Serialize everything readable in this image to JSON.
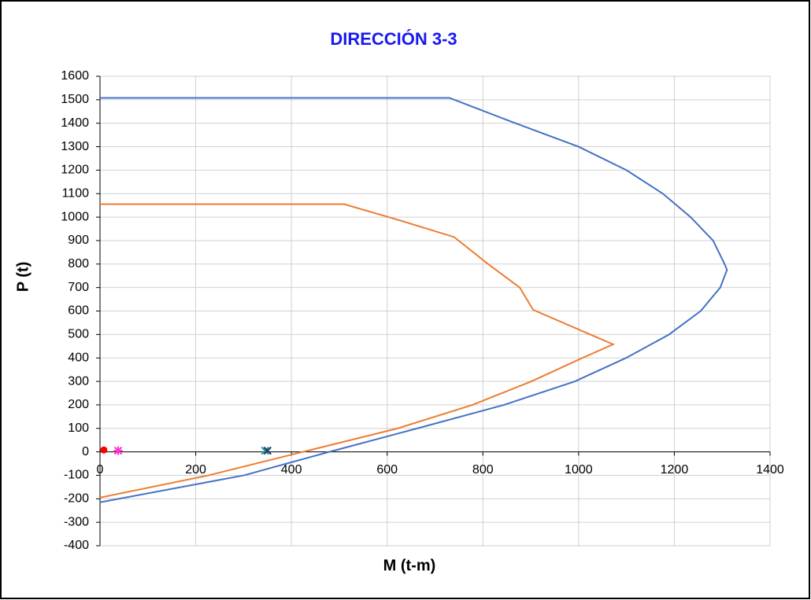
{
  "chart_data": {
    "type": "scatter",
    "title": "DIRECCIÓN 3-3",
    "x_label": "M (t-m)",
    "y_label": "P (t)",
    "xlim": [
      0,
      1400
    ],
    "ylim": [
      -400,
      1600
    ],
    "xticks": [
      0,
      200,
      400,
      600,
      800,
      1000,
      1200,
      1400
    ],
    "yticks": [
      -400,
      -300,
      -200,
      -100,
      0,
      100,
      200,
      300,
      400,
      500,
      600,
      700,
      800,
      900,
      1000,
      1100,
      1200,
      1300,
      1400,
      1500,
      1600
    ],
    "grid": true,
    "series": [
      {
        "color": "#4472c4",
        "marker": "none",
        "x": [
          0,
          730,
          868,
          1000,
          1100,
          1176,
          1234,
          1281,
          1305,
          1310,
          1296,
          1255,
          1189,
          1099,
          992,
          844,
          663,
          479,
          301,
          0
        ],
        "values": [
          1508,
          1508,
          1400,
          1300,
          1200,
          1100,
          1000,
          900,
          800,
          775,
          700,
          600,
          500,
          400,
          300,
          200,
          100,
          0,
          -100,
          -215
        ]
      },
      {
        "color": "#ed7d31",
        "marker": "none",
        "x": [
          0,
          510,
          620,
          740,
          811,
          877,
          905,
          1072,
          1008,
          901,
          778,
          622,
          424,
          227,
          0
        ],
        "values": [
          1055,
          1055,
          990,
          915,
          800,
          700,
          605,
          458,
          400,
          300,
          200,
          100,
          0,
          -100,
          -195
        ]
      },
      {
        "color": "#ff0000",
        "marker": "circle",
        "x": [
          8
        ],
        "values": [
          8
        ]
      },
      {
        "color": "#ff33cc",
        "marker": "star",
        "x": [
          38
        ],
        "values": [
          5
        ]
      },
      {
        "color": "#1f9c9c",
        "marker": "x",
        "x": [
          345
        ],
        "values": [
          5
        ]
      },
      {
        "color": "#1f3864",
        "marker": "x",
        "x": [
          350
        ],
        "values": [
          5
        ]
      }
    ]
  }
}
